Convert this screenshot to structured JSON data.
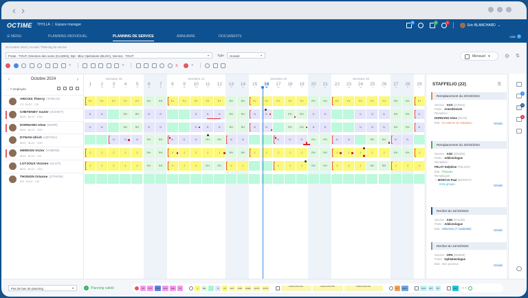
{
  "window": {
    "back": "‹",
    "forward": "›"
  },
  "header": {
    "logo": "OCTIME",
    "org": "THYLLA",
    "space": "Espace manager",
    "menu_label": "MENU",
    "nav": [
      {
        "label": "PLANNING INDIVIDUEL",
        "active": false
      },
      {
        "label": "PLANNING DE SERVICE",
        "active": true
      },
      {
        "label": "ANNUAIRE",
        "active": false
      },
      {
        "label": "DOCUMENTS",
        "active": false
      }
    ],
    "icons": [
      {
        "name": "messages-icon",
        "badge": "18",
        "badge_color": "#2e8ff0"
      },
      {
        "name": "bell-icon",
        "badge": "",
        "badge_color": ""
      },
      {
        "name": "document-icon",
        "badge": "3",
        "badge_color": "#3bb15e"
      },
      {
        "name": "alert-icon",
        "badge": "1",
        "badge_color": "#e5343d"
      }
    ],
    "user_name": "Eric BLANCHARD",
    "help_label": "Aide",
    "help_icon": "?"
  },
  "breadcrumb": "16 octobre 2024  |  Accueil  /  Planning de service",
  "filter": {
    "value": "Poste : TOUT, Direction des soins (CLSDIN), Dpt : Bloc Opératoire (BLOC), Service : TOUT",
    "type_label": "Type",
    "type_value": "Horaire"
  },
  "view": {
    "mode": "Mensuel"
  },
  "calendar": {
    "month": "Octobre 2024",
    "employee_count": "7 employés",
    "weeks": [
      {
        "label": "Semaine 40"
      },
      {
        "label": "Semaine 41"
      },
      {
        "label": "Semaine 42"
      },
      {
        "label": "Semaine 43"
      }
    ],
    "days": [
      {
        "n": "1",
        "l": "L"
      },
      {
        "n": "2",
        "l": "M"
      },
      {
        "n": "3",
        "l": "M"
      },
      {
        "n": "4",
        "l": "J"
      },
      {
        "n": "5",
        "l": "V"
      },
      {
        "n": "6",
        "l": "S"
      },
      {
        "n": "7",
        "l": "D"
      },
      {
        "n": "8",
        "l": "L"
      },
      {
        "n": "9",
        "l": "M"
      },
      {
        "n": "10",
        "l": "M"
      },
      {
        "n": "11",
        "l": "J"
      },
      {
        "n": "12",
        "l": "V"
      },
      {
        "n": "13",
        "l": "S"
      },
      {
        "n": "14",
        "l": "D"
      },
      {
        "n": "15",
        "l": "L"
      },
      {
        "n": "16",
        "l": "M"
      },
      {
        "n": "17",
        "l": "M"
      },
      {
        "n": "18",
        "l": "J"
      },
      {
        "n": "19",
        "l": "V"
      },
      {
        "n": "20",
        "l": "S"
      },
      {
        "n": "21",
        "l": "D"
      },
      {
        "n": "22",
        "l": "L"
      },
      {
        "n": "23",
        "l": "M"
      },
      {
        "n": "24",
        "l": "M"
      },
      {
        "n": "25",
        "l": "J"
      },
      {
        "n": "26",
        "l": "V"
      },
      {
        "n": "27",
        "l": "S"
      },
      {
        "n": "28",
        "l": "D"
      },
      {
        "n": "29",
        "l": "L"
      }
    ],
    "today_index": 15,
    "employees": [
      {
        "name": "ARCOIX Thierry",
        "code": "(TARCO)",
        "sub": "CS · BLOC · CDI",
        "flag": false,
        "cells": [
          "FJ",
          "FJ",
          "FJ",
          "FJ",
          "FJ",
          "RH",
          "RH",
          "FJ",
          "FJ",
          "FJ",
          "FJ",
          "FJ",
          "RH",
          "RH",
          "FJ",
          "FJ",
          "FJ",
          "FJ",
          "FJ",
          "RH",
          "RH",
          "FJ",
          "FJ",
          "FJ",
          "FJ",
          "FJ",
          "RH",
          "RH",
          "FJ"
        ]
      },
      {
        "name": "CHETENEY Xavier",
        "code": "(XCHET)",
        "sub": "IBOD · BLOC · CDD",
        "flag": true,
        "cells": [
          "N",
          "N",
          "",
          "RH",
          "RH",
          "N",
          "N",
          "",
          "",
          "N",
          "N",
          "N",
          "RH",
          "RH",
          "N",
          "N",
          "",
          "RH",
          "RH",
          "N",
          "N",
          "",
          "",
          "N",
          "N",
          "N",
          "RH",
          "RH",
          "N"
        ]
      },
      {
        "name": "DORNANO Irène",
        "code": "(IDOR)",
        "sub": "IBOD · BLOC · CDD",
        "flag": true,
        "cells": [
          "N",
          "N",
          "",
          "RH",
          "RH",
          "N",
          "N",
          "",
          "",
          "N",
          "N",
          "N",
          "RH",
          "RH",
          "N",
          "N",
          "",
          "RH",
          "RH",
          "N",
          "N",
          "",
          "",
          "N",
          "N",
          "N",
          "RH",
          "RH",
          "N"
        ]
      },
      {
        "name": "DYNAN Ulrich",
        "code": "(UDYNA)",
        "sub": "IBOD · BLOC · CDD",
        "flag": false,
        "cells": [
          "",
          "",
          "N",
          "N",
          "N",
          "RH",
          "RH",
          "N",
          "N",
          "N",
          "RH",
          "RH",
          "N",
          "N",
          "",
          "",
          "N",
          "N",
          "N",
          "RH",
          "RH",
          "N",
          "N",
          "",
          "RH",
          "RH",
          "N",
          "N",
          ""
        ]
      },
      {
        "name": "HERDON Victor",
        "code": "(VHERD)",
        "sub": "IBOD · BLOC · CDI",
        "flag": true,
        "cells": [
          "J",
          "J",
          "J",
          "J",
          "J",
          "RH",
          "RH",
          "J",
          "J",
          "J",
          "J",
          "J",
          "RH",
          "RH",
          "J",
          "J",
          "J",
          "J",
          "J",
          "RH",
          "RH",
          "J",
          "J",
          "J",
          "J",
          "J",
          "RH",
          "RH",
          "J"
        ]
      },
      {
        "name": "LOTJOUX Victoire",
        "code": "(VLOT)",
        "sub": "IBOD · BLOC · CDD",
        "flag": false,
        "cells": [
          "J",
          "J",
          "J",
          "J",
          "J",
          "RH",
          "RH",
          "J",
          "J",
          "J",
          "RH",
          "RH",
          "J",
          "J",
          "",
          "",
          "J",
          "J",
          "J",
          "RH",
          "RH",
          "J",
          "J",
          "J",
          "RH",
          "RH",
          "J",
          "J",
          "J"
        ]
      },
      {
        "name": "THONON Orianne",
        "code": "(OTHON)",
        "sub": "IDE · BLOC · CDI",
        "flag": false,
        "cells": [
          "",
          "",
          "",
          "",
          "",
          "",
          "",
          "",
          "",
          "",
          "",
          "",
          "",
          "",
          "",
          "",
          "",
          "",
          "",
          "",
          "",
          "",
          "",
          "",
          "",
          "",
          "",
          "",
          ""
        ]
      }
    ]
  },
  "staffelio": {
    "title": "STAFFELIO (22)",
    "cards": [
      {
        "header": "Remplacement du 20/10/2024",
        "accent": "#e8825a",
        "lines": [
          [
            "Service : ",
            "AGS",
            " (210604)"
          ],
          [
            "Poste : ",
            "Anesthésiste",
            ""
          ],
          [
            "Remplacé :",
            "",
            ""
          ],
          [
            "",
            "DORNANO Irène",
            " (IDOR)"
          ]
        ],
        "state_label": "Etat : ",
        "state": "En attente de validation",
        "state_color": "#e8825a",
        "details": "Détails"
      },
      {
        "header": "Remplacement du 20/10/2024",
        "accent": "#3bb15e",
        "lines": [
          [
            "Service : ",
            "ASD",
            " (291006)"
          ],
          [
            "Poste : ",
            "Addictologue",
            ""
          ],
          [
            "Remplacé :",
            "",
            ""
          ],
          [
            "",
            "PELAT Delphine",
            " (PELD23)"
          ]
        ],
        "state_label": "Etat : ",
        "state": "Pourvue",
        "state_color": "#3bb15e",
        "replacer_label": "Remplaçant :",
        "replacer": "MONTJA Paul",
        "replacer_code": "(MONP27)",
        "replacer_tag": "Intra-groupe",
        "details": "Détails"
      },
      {
        "header": "Renfort du 22/10/2024",
        "accent": "#1b4f86",
        "lines": [
          [
            "Service : ",
            "ASD",
            " (071169)"
          ],
          [
            "Poste : ",
            "Addictologue",
            ""
          ]
        ],
        "state_label": "Etat : ",
        "state": "Sélection (7 candidats)",
        "state_color": "#2e7fd1",
        "details": "Détails"
      },
      {
        "header": "Renfort du 24/10/2024",
        "accent": "#8a93a3",
        "lines": [
          [
            "Service : ",
            "OPH",
            " (050568)"
          ],
          [
            "Poste : ",
            "Ophtalmologue",
            ""
          ]
        ],
        "state_label": "Etat : ",
        "state": "Non pourvue",
        "state_color": "#9aa2ae",
        "details": "Détails"
      }
    ]
  },
  "rail": [
    {
      "name": "list-icon",
      "badge": ""
    },
    {
      "name": "mail-icon",
      "badge": "4",
      "badge_color": "#2e8ff0"
    },
    {
      "name": "staffelio-icon",
      "badge": "22",
      "badge_color": "#1b4f86"
    },
    {
      "name": "chat-icon",
      "badge": "5",
      "badge_color": "#e5343d"
    },
    {
      "name": "grid-icon",
      "badge": ""
    }
  ],
  "footer": {
    "bottom_select": "Pas de bas de planning",
    "validated": "Planning validé",
    "absences": [
      {
        "label": "CP",
        "color": "#f59af0"
      },
      {
        "label": "RTT",
        "color": "#f59af0"
      },
      {
        "label": "FOR",
        "color": "#5a86e6"
      },
      {
        "label": "MAL",
        "color": "#f59af0"
      },
      {
        "label": "DEL",
        "color": "#f59af0"
      },
      {
        "label": "AT",
        "color": "#f59af0"
      }
    ],
    "shifts": [
      {
        "label": "J",
        "color": "#fbf87a"
      },
      {
        "label": "RH",
        "color": "#dff8e1"
      },
      {
        "label": "",
        "color": "#a7f5d5"
      },
      {
        "label": "N",
        "color": "#e4e4fb"
      },
      {
        "label": "FJ",
        "color": "#fbf87a"
      },
      {
        "label": "ACT",
        "color": "#fbf7b4"
      },
      {
        "label": "CAB",
        "color": "#fbf7b4"
      },
      {
        "label": "ACE2",
        "color": "#fbf7b4"
      },
      {
        "label": "ACT2",
        "color": "#fbf7b4"
      },
      {
        "label": "ACT3",
        "color": "#fbf7b4"
      }
    ],
    "postes": [
      {
        "label": "DIR/ACC/001 IDE"
      },
      {
        "label": "DIR/ACC/001 IDE"
      },
      {
        "label": "DIR/ACC/001 IDE"
      }
    ],
    "roles": [
      {
        "label": "TT",
        "color": "#f7a154"
      },
      {
        "label": "DEPL",
        "color": "#6fa6ea"
      }
    ],
    "activities": [
      {
        "label": "ACC",
        "color": "#c4f1f7"
      },
      {
        "label": "INT",
        "color": "#c4f1f7"
      },
      {
        "label": "TR",
        "color": "#c4f1f7"
      }
    ],
    "phone": [
      {
        "label": "AST",
        "color": "#1ec6dc"
      }
    ]
  }
}
